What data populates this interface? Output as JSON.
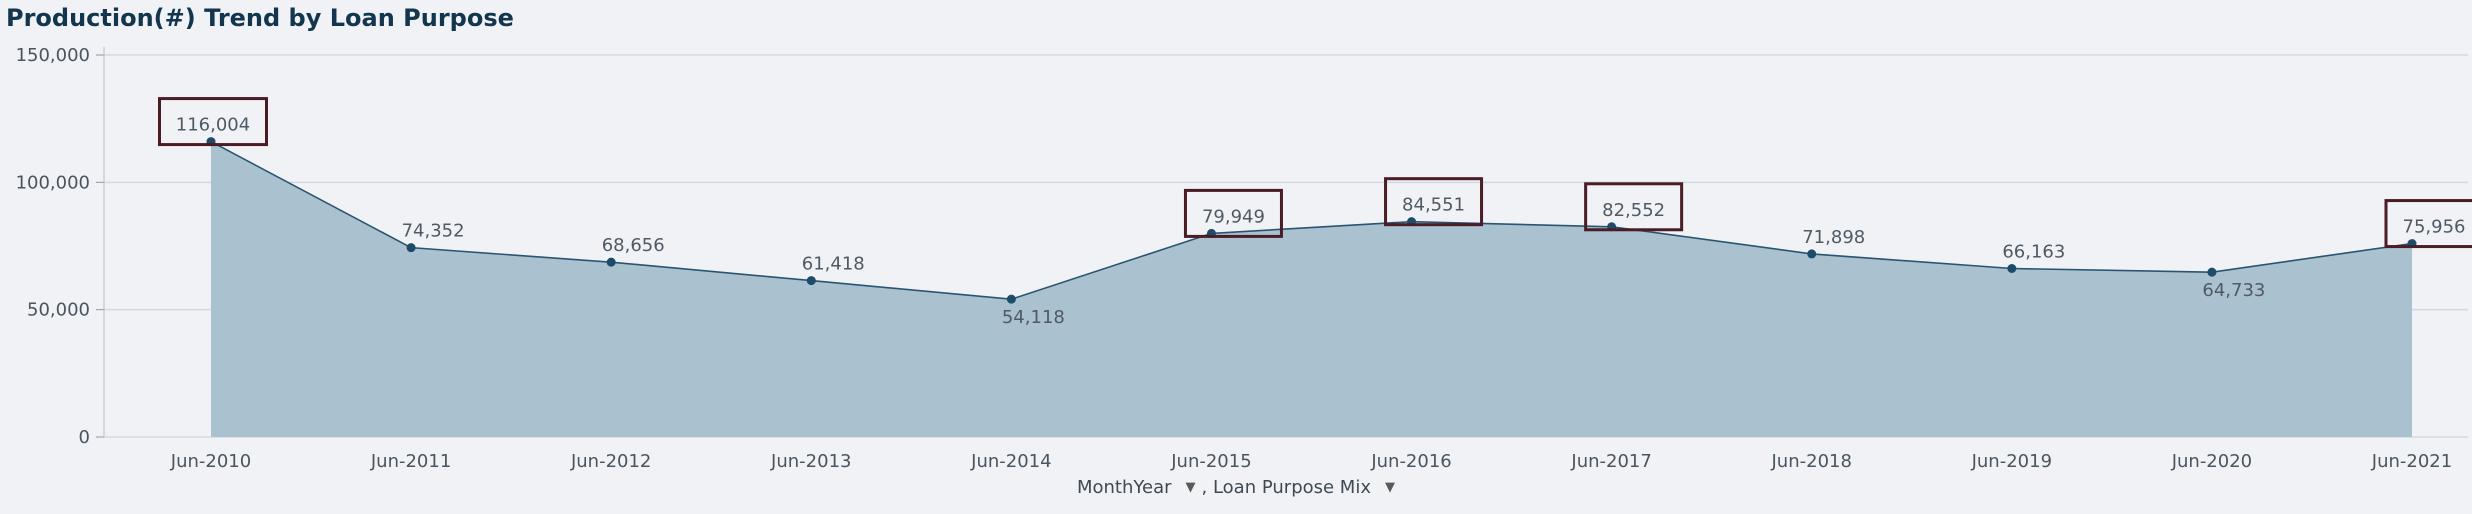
{
  "title": "Production(#) Trend by Loan Purpose",
  "dimensions": {
    "monthyear_label": "MonthYear",
    "loan_purpose_label": ", Loan Purpose Mix",
    "dropdown_icon": "caret-down-icon"
  },
  "colors": {
    "area_fill": "#aac1d0",
    "line": "#2a5571",
    "point": "#1d4b6a",
    "highlight_box": "#4a1c26",
    "grid": "#d3d9e0",
    "title": "#13354e"
  },
  "chart_data": {
    "type": "area",
    "title": "Production(#) Trend by Loan Purpose",
    "xlabel": "",
    "ylabel": "",
    "ylim": [
      0,
      150000
    ],
    "yticks": [
      0,
      50000,
      100000,
      150000
    ],
    "ytick_labels": [
      "0",
      "50,000",
      "100,000",
      "150,000"
    ],
    "categories": [
      "Jun-2010",
      "Jun-2011",
      "Jun-2012",
      "Jun-2013",
      "Jun-2014",
      "Jun-2015",
      "Jun-2016",
      "Jun-2017",
      "Jun-2018",
      "Jun-2019",
      "Jun-2020",
      "Jun-2021"
    ],
    "values": [
      116004,
      74352,
      68656,
      61418,
      54118,
      79949,
      84551,
      82552,
      71898,
      66163,
      64733,
      75956
    ],
    "value_labels": [
      "116,004",
      "74,352",
      "68,656",
      "61,418",
      "54,118",
      "79,949",
      "84,551",
      "82,552",
      "71,898",
      "66,163",
      "64,733",
      "75,956"
    ],
    "label_position": [
      "above",
      "above",
      "above",
      "above",
      "below",
      "above",
      "above",
      "above",
      "above",
      "above",
      "below",
      "above"
    ],
    "highlighted": [
      "Jun-2010",
      "Jun-2015",
      "Jun-2016",
      "Jun-2017",
      "Jun-2021"
    ],
    "grid": true,
    "legend": "none"
  }
}
